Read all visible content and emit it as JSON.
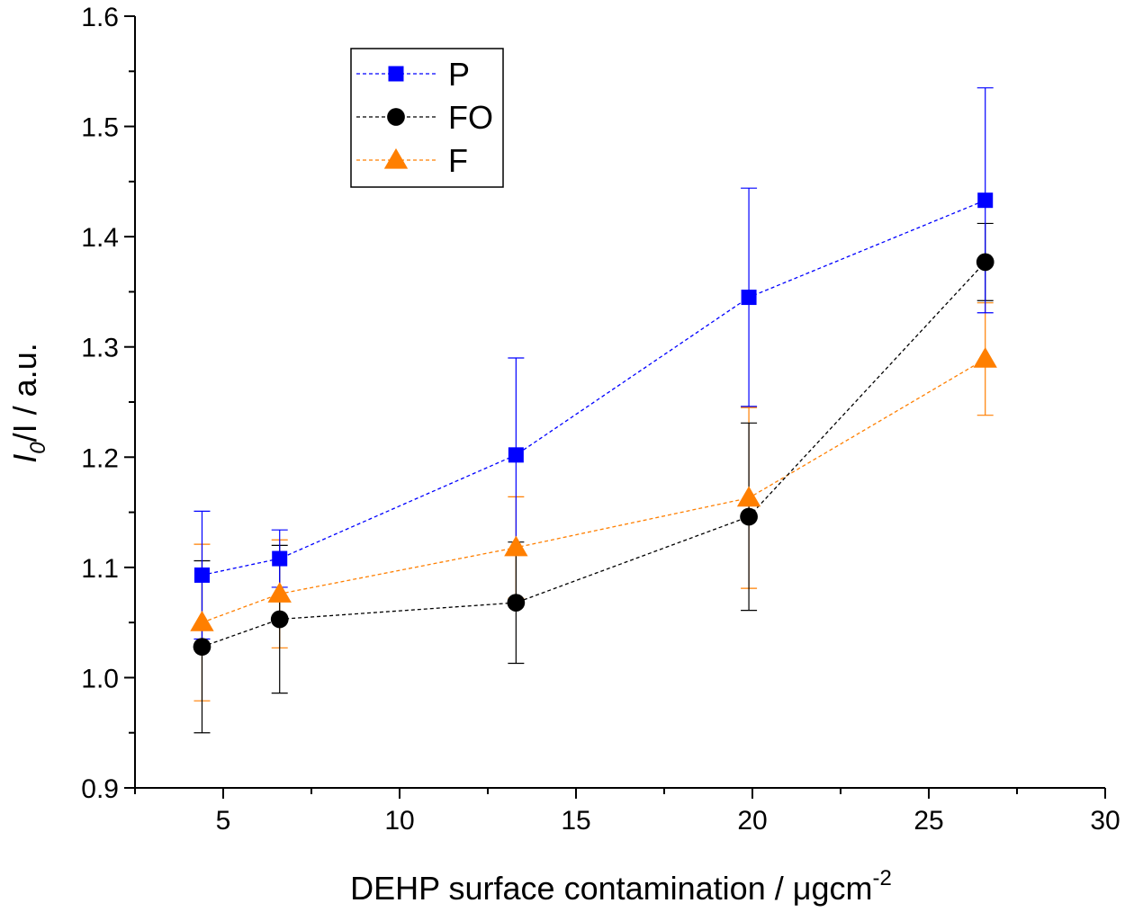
{
  "chart_data": {
    "type": "scatter",
    "xlabel": {
      "main": "DEHP surface contamination / μgcm",
      "sup": "-2"
    },
    "ylabel": {
      "i0": "I",
      "sub": "0",
      "rest": "/I / a.u."
    },
    "xlim": [
      2.5,
      30
    ],
    "ylim": [
      0.9,
      1.6
    ],
    "xticks": [
      5,
      10,
      15,
      20,
      25,
      30
    ],
    "yticks": [
      0.9,
      1.0,
      1.1,
      1.2,
      1.3,
      1.4,
      1.5,
      1.6
    ],
    "xtick_labels": [
      "5",
      "10",
      "15",
      "20",
      "25",
      "30"
    ],
    "ytick_labels": [
      "0.9",
      "1.0",
      "1.1",
      "1.2",
      "1.3",
      "1.4",
      "1.5",
      "1.6"
    ],
    "grid": false,
    "legend_position": "top-left",
    "series": [
      {
        "name": "P",
        "marker": "square",
        "color": "#0000ff",
        "x": [
          4.4,
          6.6,
          13.3,
          19.9,
          26.6
        ],
        "y": [
          1.093,
          1.108,
          1.202,
          1.345,
          1.433
        ],
        "err": [
          0.058,
          0.026,
          0.088,
          0.099,
          0.102
        ]
      },
      {
        "name": "FO",
        "marker": "circle",
        "color": "#000000",
        "x": [
          4.4,
          6.6,
          13.3,
          19.9,
          26.6
        ],
        "y": [
          1.028,
          1.053,
          1.068,
          1.146,
          1.377
        ],
        "err": [
          0.078,
          0.067,
          0.055,
          0.085,
          0.035
        ]
      },
      {
        "name": "F",
        "marker": "triangle",
        "color": "#ff7f00",
        "x": [
          4.4,
          6.6,
          13.3,
          19.9,
          26.6
        ],
        "y": [
          1.05,
          1.076,
          1.118,
          1.163,
          1.289
        ],
        "err": [
          0.071,
          0.049,
          0.046,
          0.082,
          0.051
        ]
      }
    ]
  }
}
